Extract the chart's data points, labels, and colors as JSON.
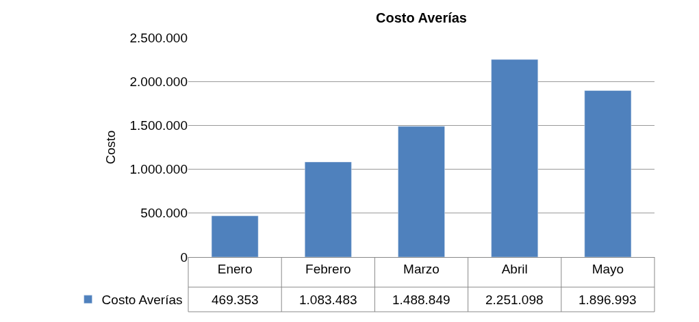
{
  "chart_data": {
    "type": "bar",
    "title": "Costo Averías",
    "ylabel": "Costo",
    "categories": [
      "Enero",
      "Febrero",
      "Marzo",
      "Abril",
      "Mayo"
    ],
    "series": [
      {
        "name": "Costo Averías",
        "color": "#4f81bd",
        "values": [
          469353,
          1083483,
          1488849,
          2251098,
          1896993
        ],
        "value_labels": [
          "469.353",
          "1.083.483",
          "1.488.849",
          "2.251.098",
          "1.896.993"
        ]
      }
    ],
    "ylim": [
      0,
      2500000
    ],
    "yticks": [
      {
        "value": 0,
        "label": "0"
      },
      {
        "value": 500000,
        "label": "500.000"
      },
      {
        "value": 1000000,
        "label": "1.000.000"
      },
      {
        "value": 1500000,
        "label": "1.500.000"
      },
      {
        "value": 2000000,
        "label": "2.000.000"
      },
      {
        "value": 2500000,
        "label": "2.500.000"
      }
    ],
    "grid": "y",
    "legend": "bottom left"
  }
}
